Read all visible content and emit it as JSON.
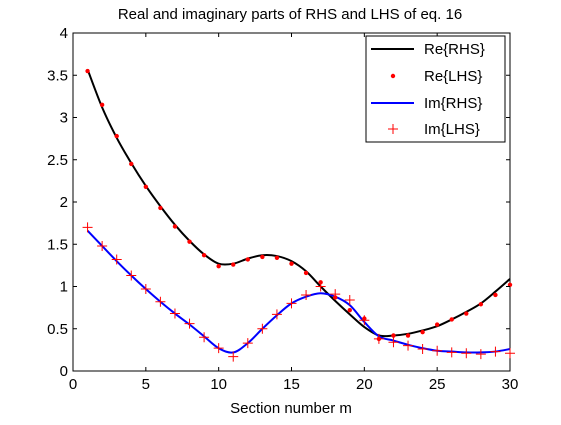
{
  "chart_data": {
    "type": "line",
    "title": "Real and imaginary parts of RHS and LHS of eq. 16",
    "xlabel": "Section number m",
    "ylabel": "",
    "xlim": [
      0,
      30
    ],
    "ylim": [
      0,
      4
    ],
    "x_ticks": [
      "0",
      "5",
      "10",
      "15",
      "20",
      "25",
      "30"
    ],
    "y_ticks": [
      "0",
      "0.5",
      "1",
      "1.5",
      "2",
      "2.5",
      "3",
      "3.5",
      "4"
    ],
    "grid": false,
    "legend_position": "top-right",
    "x": [
      1,
      2,
      3,
      4,
      5,
      6,
      7,
      8,
      9,
      10,
      11,
      12,
      13,
      14,
      15,
      16,
      17,
      18,
      19,
      20,
      21,
      22,
      23,
      24,
      25,
      26,
      27,
      28,
      29,
      30
    ],
    "series": [
      {
        "name": "Re{RHS}",
        "style": "line",
        "color": "#000000",
        "values": [
          3.57,
          3.12,
          2.76,
          2.46,
          2.19,
          1.95,
          1.73,
          1.54,
          1.38,
          1.27,
          1.27,
          1.33,
          1.37,
          1.36,
          1.3,
          1.18,
          1.0,
          0.83,
          0.67,
          0.52,
          0.42,
          0.42,
          0.44,
          0.48,
          0.53,
          0.61,
          0.7,
          0.8,
          0.94,
          1.09
        ]
      },
      {
        "name": "Re{LHS}",
        "style": "dot",
        "color": "#ff0000",
        "values": [
          3.55,
          3.15,
          2.78,
          2.45,
          2.18,
          1.93,
          1.71,
          1.53,
          1.37,
          1.24,
          1.26,
          1.32,
          1.35,
          1.34,
          1.27,
          1.16,
          1.05,
          0.87,
          0.72,
          0.62,
          0.38,
          0.42,
          0.42,
          0.46,
          0.55,
          0.61,
          0.68,
          0.79,
          0.9,
          1.02
        ]
      },
      {
        "name": "Im{RHS}",
        "style": "line",
        "color": "#0000ff",
        "values": [
          1.66,
          1.48,
          1.3,
          1.13,
          0.97,
          0.82,
          0.68,
          0.55,
          0.41,
          0.27,
          0.22,
          0.33,
          0.5,
          0.66,
          0.8,
          0.88,
          0.92,
          0.88,
          0.78,
          0.58,
          0.41,
          0.36,
          0.31,
          0.27,
          0.24,
          0.23,
          0.22,
          0.22,
          0.23,
          0.26
        ]
      },
      {
        "name": "Im{LHS}",
        "style": "plus",
        "color": "#ff0000",
        "values": [
          1.7,
          1.48,
          1.32,
          1.13,
          0.97,
          0.82,
          0.68,
          0.56,
          0.4,
          0.27,
          0.17,
          0.33,
          0.5,
          0.67,
          0.8,
          0.9,
          1.0,
          0.91,
          0.84,
          0.6,
          0.38,
          0.34,
          0.3,
          0.26,
          0.24,
          0.22,
          0.21,
          0.2,
          0.23,
          0.21
        ]
      }
    ]
  }
}
